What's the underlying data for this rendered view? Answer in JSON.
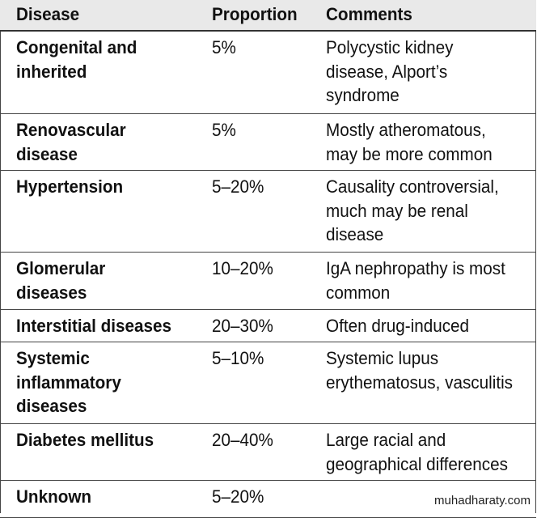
{
  "table": {
    "header": [
      "Disease",
      "Proportion",
      "Comments"
    ],
    "rows": [
      [
        "Congenital and\ninherited",
        "5%",
        "Polycystic kidney\ndisease, Alport’s\nsyndrome"
      ],
      [
        "Renovascular\ndisease",
        "5%",
        "Mostly atheromatous,\nmay be more common"
      ],
      [
        "Hypertension",
        "5–20%",
        "Causality controversial,\nmuch may be renal\ndisease"
      ],
      [
        "Glomerular\ndiseases",
        "10–20%",
        "IgA nephropathy is most\ncommon"
      ],
      [
        "Interstitial diseases",
        "20–30%",
        "Often drug-induced"
      ],
      [
        "Systemic\ninflammatory\ndiseases",
        "5–10%",
        "Systemic lupus\nerythematosus, vasculitis"
      ],
      [
        "Diabetes mellitus",
        "20–40%",
        "Large racial and\ngeographical differences"
      ],
      [
        "Unknown",
        "5–20%",
        ""
      ]
    ]
  },
  "watermark": "muhadharaty.com"
}
